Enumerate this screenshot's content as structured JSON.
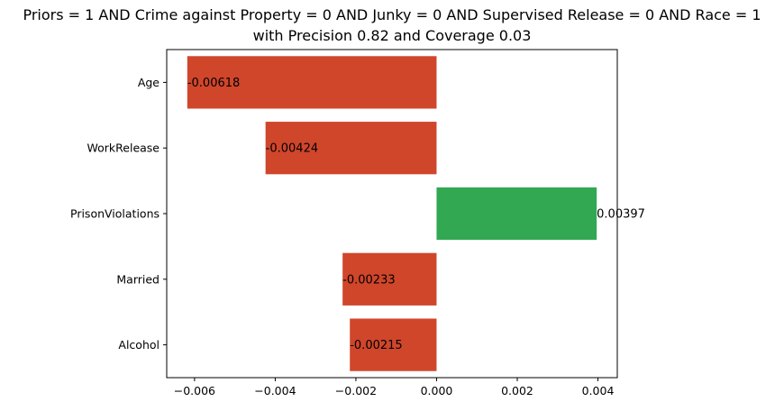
{
  "chart_data": {
    "type": "bar",
    "orientation": "horizontal",
    "title_line1": "Priors = 1 AND Crime against Property = 0 AND Junky = 0 AND Supervised Release = 0 AND Race = 1",
    "title_line2": "with Precision 0.82 and Coverage 0.03",
    "xlabel": "",
    "ylabel": "",
    "categories": [
      "Age",
      "WorkRelease",
      "PrisonViolations",
      "Married",
      "Alcohol"
    ],
    "values": [
      -0.00618,
      -0.00424,
      0.00397,
      -0.00233,
      -0.00215
    ],
    "value_labels": [
      "-0.00618",
      "-0.00424",
      "0.00397",
      "-0.00233",
      "-0.00215"
    ],
    "xlim": [
      -0.00669,
      0.00448
    ],
    "xticks": [
      -0.006,
      -0.004,
      -0.002,
      0.0,
      0.002,
      0.004
    ],
    "xtick_labels": [
      "−0.006",
      "−0.004",
      "−0.002",
      "0.000",
      "0.002",
      "0.004"
    ],
    "colors": {
      "negative": "#d0462b",
      "positive": "#33a853"
    },
    "grid": false,
    "legend": "none"
  }
}
